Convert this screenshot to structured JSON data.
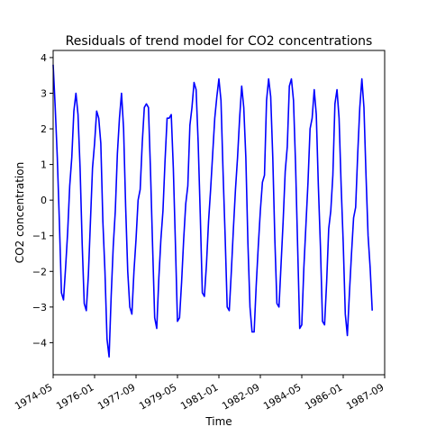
{
  "chart_data": {
    "type": "line",
    "title": "Residuals of trend model for CO2 concentrations",
    "xlabel": "Time",
    "ylabel": "CO2 concentration",
    "x_range": [
      "1974-05",
      "1987-09"
    ],
    "ylim": [
      -4.9,
      4.2
    ],
    "x_ticks": [
      "1974-05",
      "1976-01",
      "1977-09",
      "1979-05",
      "1981-01",
      "1982-09",
      "1984-05",
      "1986-01",
      "1987-09"
    ],
    "y_ticks": [
      -4,
      -3,
      -2,
      -1,
      0,
      1,
      2,
      3,
      4
    ],
    "grid": false,
    "legend": "none",
    "series": [
      {
        "color": "#0000ff",
        "points": [
          [
            "1974-05",
            3.8
          ],
          [
            "1974-06",
            2.6
          ],
          [
            "1974-07",
            1.2
          ],
          [
            "1974-08",
            -0.6
          ],
          [
            "1974-09",
            -2.6
          ],
          [
            "1974-10",
            -2.8
          ],
          [
            "1974-11",
            -1.9
          ],
          [
            "1974-12",
            -0.9
          ],
          [
            "1975-01",
            0.4
          ],
          [
            "1975-02",
            1.2
          ],
          [
            "1975-03",
            2.5
          ],
          [
            "1975-04",
            3.0
          ],
          [
            "1975-05",
            2.4
          ],
          [
            "1975-06",
            0.9
          ],
          [
            "1975-07",
            -1.2
          ],
          [
            "1975-08",
            -2.9
          ],
          [
            "1975-09",
            -3.1
          ],
          [
            "1975-10",
            -2.1
          ],
          [
            "1975-11",
            -0.6
          ],
          [
            "1975-12",
            0.9
          ],
          [
            "1976-01",
            1.6
          ],
          [
            "1976-02",
            2.5
          ],
          [
            "1976-03",
            2.3
          ],
          [
            "1976-04",
            1.6
          ],
          [
            "1976-05",
            -0.6
          ],
          [
            "1976-06",
            -2.0
          ],
          [
            "1976-07",
            -3.9
          ],
          [
            "1976-08",
            -4.4
          ],
          [
            "1976-09",
            -2.7
          ],
          [
            "1976-10",
            -1.3
          ],
          [
            "1976-11",
            -0.3
          ],
          [
            "1976-12",
            1.3
          ],
          [
            "1977-01",
            2.3
          ],
          [
            "1977-02",
            3.0
          ],
          [
            "1977-03",
            2.0
          ],
          [
            "1977-04",
            -0.2
          ],
          [
            "1977-05",
            -2.0
          ],
          [
            "1977-06",
            -3.0
          ],
          [
            "1977-07",
            -3.2
          ],
          [
            "1977-08",
            -2.0
          ],
          [
            "1977-09",
            -1.1
          ],
          [
            "1977-10",
            0.0
          ],
          [
            "1977-11",
            0.3
          ],
          [
            "1977-12",
            1.6
          ],
          [
            "1978-01",
            2.6
          ],
          [
            "1978-02",
            2.7
          ],
          [
            "1978-03",
            2.6
          ],
          [
            "1978-04",
            0.8
          ],
          [
            "1978-05",
            -1.3
          ],
          [
            "1978-06",
            -3.3
          ],
          [
            "1978-07",
            -3.6
          ],
          [
            "1978-08",
            -2.2
          ],
          [
            "1978-09",
            -1.1
          ],
          [
            "1978-10",
            -0.3
          ],
          [
            "1978-11",
            1.1
          ],
          [
            "1978-12",
            2.3
          ],
          [
            "1979-01",
            2.3
          ],
          [
            "1979-02",
            2.4
          ],
          [
            "1979-03",
            0.9
          ],
          [
            "1979-04",
            -1.2
          ],
          [
            "1979-05",
            -3.4
          ],
          [
            "1979-06",
            -3.3
          ],
          [
            "1979-07",
            -2.3
          ],
          [
            "1979-08",
            -1.1
          ],
          [
            "1979-09",
            -0.1
          ],
          [
            "1979-10",
            0.4
          ],
          [
            "1979-11",
            2.1
          ],
          [
            "1979-12",
            2.6
          ],
          [
            "1980-01",
            3.3
          ],
          [
            "1980-02",
            3.1
          ],
          [
            "1980-03",
            1.6
          ],
          [
            "1980-04",
            -0.4
          ],
          [
            "1980-05",
            -2.6
          ],
          [
            "1980-06",
            -2.7
          ],
          [
            "1980-07",
            -1.8
          ],
          [
            "1980-08",
            -0.6
          ],
          [
            "1980-09",
            0.3
          ],
          [
            "1980-10",
            1.3
          ],
          [
            "1980-11",
            2.3
          ],
          [
            "1980-12",
            2.9
          ],
          [
            "1981-01",
            3.4
          ],
          [
            "1981-02",
            2.8
          ],
          [
            "1981-03",
            0.8
          ],
          [
            "1981-04",
            -1.0
          ],
          [
            "1981-05",
            -3.0
          ],
          [
            "1981-06",
            -3.1
          ],
          [
            "1981-07",
            -2.0
          ],
          [
            "1981-08",
            -0.8
          ],
          [
            "1981-09",
            0.3
          ],
          [
            "1981-10",
            1.2
          ],
          [
            "1981-11",
            2.3
          ],
          [
            "1981-12",
            3.2
          ],
          [
            "1982-01",
            2.6
          ],
          [
            "1982-02",
            1.2
          ],
          [
            "1982-03",
            -1.2
          ],
          [
            "1982-04",
            -3.0
          ],
          [
            "1982-05",
            -3.7
          ],
          [
            "1982-06",
            -3.7
          ],
          [
            "1982-07",
            -2.4
          ],
          [
            "1982-08",
            -1.3
          ],
          [
            "1982-09",
            -0.3
          ],
          [
            "1982-10",
            0.5
          ],
          [
            "1982-11",
            0.7
          ],
          [
            "1982-12",
            2.8
          ],
          [
            "1983-01",
            3.4
          ],
          [
            "1983-02",
            2.9
          ],
          [
            "1983-03",
            1.2
          ],
          [
            "1983-04",
            -1.1
          ],
          [
            "1983-05",
            -2.9
          ],
          [
            "1983-06",
            -3.0
          ],
          [
            "1983-07",
            -1.8
          ],
          [
            "1983-08",
            -0.6
          ],
          [
            "1983-09",
            0.8
          ],
          [
            "1983-10",
            1.5
          ],
          [
            "1983-11",
            3.2
          ],
          [
            "1983-12",
            3.4
          ],
          [
            "1984-01",
            2.8
          ],
          [
            "1984-02",
            1.0
          ],
          [
            "1984-03",
            -1.3
          ],
          [
            "1984-04",
            -3.6
          ],
          [
            "1984-05",
            -3.5
          ],
          [
            "1984-06",
            -1.9
          ],
          [
            "1984-07",
            -0.7
          ],
          [
            "1984-08",
            0.5
          ],
          [
            "1984-09",
            2.0
          ],
          [
            "1984-10",
            2.3
          ],
          [
            "1984-11",
            3.1
          ],
          [
            "1984-12",
            2.4
          ],
          [
            "1985-01",
            0.4
          ],
          [
            "1985-02",
            -1.3
          ],
          [
            "1985-03",
            -3.4
          ],
          [
            "1985-04",
            -3.5
          ],
          [
            "1985-05",
            -2.3
          ],
          [
            "1985-06",
            -0.8
          ],
          [
            "1985-07",
            -0.3
          ],
          [
            "1985-08",
            0.7
          ],
          [
            "1985-09",
            2.7
          ],
          [
            "1985-10",
            3.1
          ],
          [
            "1985-11",
            2.3
          ],
          [
            "1985-12",
            0.4
          ],
          [
            "1986-01",
            -1.2
          ],
          [
            "1986-02",
            -3.2
          ],
          [
            "1986-03",
            -3.8
          ],
          [
            "1986-04",
            -2.6
          ],
          [
            "1986-05",
            -1.5
          ],
          [
            "1986-06",
            -0.5
          ],
          [
            "1986-07",
            -0.2
          ],
          [
            "1986-08",
            1.3
          ],
          [
            "1986-09",
            2.6
          ],
          [
            "1986-10",
            3.4
          ],
          [
            "1986-11",
            2.6
          ],
          [
            "1986-12",
            0.7
          ],
          [
            "1987-01",
            -1.0
          ],
          [
            "1987-02",
            -1.9
          ],
          [
            "1987-03",
            -3.1
          ]
        ]
      }
    ]
  }
}
